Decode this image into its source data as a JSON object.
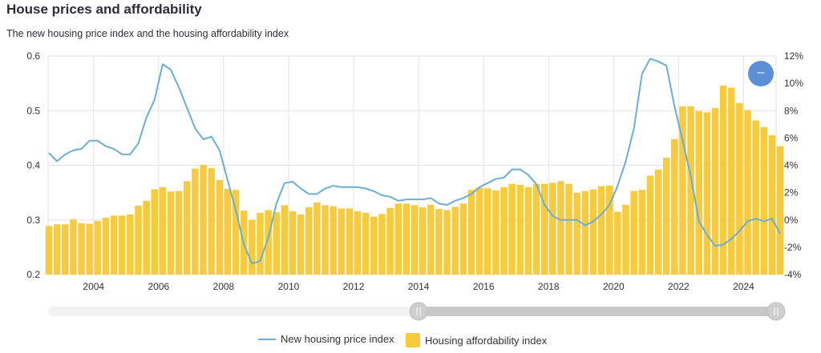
{
  "header": {
    "title": "House prices and affordability",
    "subtitle": "The new housing price index and the housing affordability index"
  },
  "controls": {
    "zoom_out_symbol": "–"
  },
  "legend": {
    "items": [
      {
        "label": "New housing price index",
        "color": "#6aaed6",
        "symbol": "line"
      },
      {
        "label": "Housing affordability index",
        "color": "#f8cb3c",
        "symbol": "box"
      }
    ]
  },
  "navigator": {
    "range_start": 2014.0,
    "range_end": 2025.0
  },
  "chart_data": {
    "type": "bar+line",
    "x_ticks": [
      "2004",
      "2006",
      "2008",
      "2010",
      "2012",
      "2014",
      "2016",
      "2018",
      "2020",
      "2022",
      "2024"
    ],
    "xlim": [
      2002.6,
      2025.0
    ],
    "left_axis": {
      "ticks": [
        "0.2",
        "0.3",
        "0.4",
        "0.5",
        "0.6"
      ],
      "ylim": [
        0.2,
        0.6
      ]
    },
    "right_axis": {
      "ticks": [
        "-4%",
        "-2%",
        "0%",
        "2%",
        "4%",
        "6%",
        "8%",
        "10%",
        "12%"
      ],
      "ylim": [
        -4,
        12
      ]
    },
    "grid": true,
    "colors": {
      "bars": "#f8cb3c",
      "line": "#6aaed6",
      "grid": "#e3e3e3"
    },
    "bar_series": {
      "name": "Housing affordability index",
      "axis": "left",
      "start": 2002.625,
      "step": 0.25,
      "values": [
        0.289,
        0.292,
        0.292,
        0.301,
        0.294,
        0.293,
        0.298,
        0.304,
        0.308,
        0.308,
        0.31,
        0.326,
        0.335,
        0.356,
        0.36,
        0.352,
        0.353,
        0.371,
        0.394,
        0.401,
        0.395,
        0.373,
        0.357,
        0.355,
        0.317,
        0.3,
        0.313,
        0.318,
        0.314,
        0.327,
        0.316,
        0.31,
        0.323,
        0.332,
        0.327,
        0.325,
        0.321,
        0.321,
        0.316,
        0.313,
        0.306,
        0.311,
        0.322,
        0.33,
        0.33,
        0.327,
        0.323,
        0.328,
        0.32,
        0.318,
        0.324,
        0.33,
        0.355,
        0.359,
        0.358,
        0.354,
        0.36,
        0.366,
        0.364,
        0.36,
        0.366,
        0.366,
        0.368,
        0.371,
        0.366,
        0.35,
        0.353,
        0.356,
        0.362,
        0.363,
        0.315,
        0.328,
        0.353,
        0.355,
        0.381,
        0.392,
        0.414,
        0.448,
        0.508,
        0.508,
        0.499,
        0.497,
        0.505,
        0.546,
        0.542,
        0.514,
        0.501,
        0.482,
        0.47,
        0.455,
        0.435
      ]
    },
    "line_series": {
      "name": "New housing price index",
      "axis": "right",
      "x_start": 2002.625,
      "step": 0.25,
      "values": [
        4.9,
        4.3,
        4.8,
        5.1,
        5.2,
        5.8,
        5.8,
        5.4,
        5.2,
        4.8,
        4.8,
        5.6,
        7.5,
        8.8,
        11.4,
        11.0,
        9.7,
        8.2,
        6.7,
        5.9,
        6.1,
        5.1,
        2.9,
        0.7,
        -1.8,
        -3.2,
        -3.0,
        -1.3,
        1.2,
        2.7,
        2.8,
        2.3,
        1.9,
        1.9,
        2.3,
        2.5,
        2.4,
        2.4,
        2.4,
        2.3,
        2.1,
        1.8,
        1.7,
        1.4,
        1.5,
        1.5,
        1.5,
        1.6,
        1.2,
        1.1,
        1.4,
        1.6,
        1.9,
        2.4,
        2.7,
        3.0,
        3.1,
        3.7,
        3.7,
        3.3,
        2.6,
        1.1,
        0.3,
        0.0,
        0.0,
        0.0,
        -0.4,
        -0.1,
        0.4,
        1.1,
        2.5,
        4.3,
        6.7,
        10.7,
        11.8,
        11.6,
        11.3,
        8.3,
        5.8,
        3.2,
        -0.1,
        -1.1,
        -1.9,
        -1.8,
        -1.4,
        -0.8,
        -0.1,
        0.1,
        -0.1,
        0.1,
        -1.0
      ]
    }
  }
}
